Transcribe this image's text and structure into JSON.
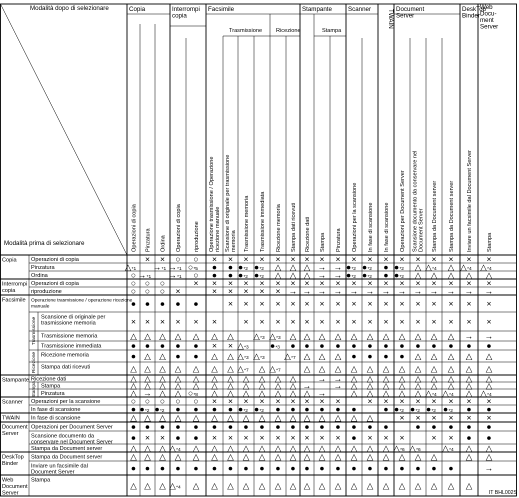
{
  "header": {
    "diagonal_top": "Modalità dopo di selezionare",
    "diagonal_bottom": "Modalità prima di selezionare",
    "groups": [
      {
        "label": "Copia"
      },
      {
        "label": "Interrompi copia"
      },
      {
        "label": "Facsimile"
      },
      {
        "label": "Stampante"
      },
      {
        "label": "Scanner"
      },
      {
        "label": "TWAIN"
      },
      {
        "label": "Document Server"
      },
      {
        "label": "DeskTop Binder"
      },
      {
        "label": "Web Document Server"
      }
    ],
    "subgroups": [
      {
        "label": "Trasmissione"
      },
      {
        "label": "Ricezione"
      },
      {
        "label": "Stampa"
      }
    ],
    "columns": [
      "Operazioni di copia",
      "Pinzatura",
      "Ordina",
      "Operazioni di copia",
      "riproduzione",
      "Operazione trasmissione / Operazione ricezione manuale",
      "Scansione di originale per trasmissione memoria",
      "Trasmissione memoria",
      "Trasmissione immediata",
      "Ricezione memoria",
      "Stampa dati ricevuti",
      "Ricezione dati",
      "Stampa",
      "Pinzatura",
      "Operazioni per la scansione",
      "In fase di scansione",
      "In fase di scansione",
      "Operazioni per Document Server",
      "Scansione documento da conservare nel Document Server",
      "Stampa da Document server",
      "Stampa da Document server",
      "Inviare un facsimile dal Document Server",
      "Stampa"
    ]
  },
  "rows": [
    {
      "group": "Copia",
      "sub": "",
      "label": "Operazioni di copia",
      "cells": [
        "",
        "×",
        "×",
        "○",
        "○",
        "×",
        "×",
        "×",
        "×",
        "×",
        "×",
        "×",
        "×",
        "×",
        "×",
        "×",
        "×",
        "×",
        "×",
        "×",
        "×",
        "×",
        "×"
      ]
    },
    {
      "group": "",
      "sub": "",
      "label": "Pinzatura",
      "cells": [
        "△*1",
        "",
        "→*1",
        "→*1",
        "○*5",
        "●",
        "●",
        "●*2",
        "●*2",
        "△",
        "△",
        "△",
        "→",
        "→",
        "●*2",
        "●*2",
        "●",
        "●*2",
        "△",
        "△*4",
        "△",
        "△*4",
        "△*4"
      ]
    },
    {
      "group": "",
      "sub": "",
      "label": "Ordina",
      "cells": [
        "○",
        "→*1",
        "",
        "→*1",
        "○",
        "●",
        "●",
        "●*2",
        "●*2",
        "△",
        "△",
        "△",
        "→",
        "→",
        "●*2",
        "●*2",
        "●",
        "●*2",
        "△",
        "△",
        "△",
        "△",
        "△"
      ]
    },
    {
      "group": "Interrompi copia",
      "sub": "",
      "label": "Operazioni di copia",
      "cells": [
        "○",
        "○",
        "○",
        "",
        "×",
        "×",
        "×",
        "×",
        "×",
        "×",
        "×",
        "×",
        "×",
        "×",
        "×",
        "×",
        "×",
        "×",
        "×",
        "×",
        "×",
        "×",
        "×"
      ]
    },
    {
      "group": "",
      "sub": "",
      "label": "riproduzione",
      "cells": [
        "○",
        "○",
        "○",
        "×",
        "",
        "×",
        "×",
        "×",
        "×",
        "×",
        "→",
        "→",
        "→",
        "→",
        "→",
        "→",
        "→",
        "→",
        "→",
        "→",
        "→",
        "→",
        "→"
      ]
    },
    {
      "group": "Facsimile",
      "sub": "",
      "label": "Operazione trasmissione / operazione ricezione manuale",
      "cells": [
        "●",
        "●",
        "●",
        "●",
        "●",
        "",
        "×",
        "×",
        "×",
        "×",
        "×",
        "×",
        "×",
        "×",
        "×",
        "×",
        "×",
        "×",
        "×",
        "×",
        "×",
        "×",
        "×"
      ]
    },
    {
      "group": "",
      "sub": "Trasmissione",
      "label": "Scansione di originale per trasmissione memoria",
      "cells": [
        "×",
        "×",
        "×",
        "×",
        "×",
        "×",
        "",
        "×",
        "×",
        "×",
        "×",
        "×",
        "×",
        "×",
        "×",
        "×",
        "×",
        "×",
        "×",
        "×",
        "×",
        "×",
        "×"
      ]
    },
    {
      "group": "",
      "sub": "",
      "label": "Trasmissione memoria",
      "cells": [
        "△",
        "△",
        "△",
        "△",
        "△",
        "△",
        "△",
        "",
        "△*3",
        "△*3",
        "△",
        "△",
        "△",
        "△",
        "△",
        "△",
        "△",
        "△",
        "△",
        "△",
        "△",
        "→",
        "→"
      ]
    },
    {
      "group": "",
      "sub": "",
      "label": "Trasmissione immediata",
      "cells": [
        "●",
        "●",
        "●",
        "●",
        "●",
        "×",
        "×",
        "△*3",
        "",
        "●*3",
        "●",
        "●",
        "●",
        "●",
        "●",
        "●",
        "●",
        "●",
        "●",
        "●",
        "●",
        "●",
        "●"
      ]
    },
    {
      "group": "",
      "sub": "Ricezione",
      "label": "Ricezione memoria",
      "cells": [
        "●",
        "△",
        "△",
        "●",
        "●",
        "△",
        "△",
        "△*3",
        "△*3",
        "",
        "△*7",
        "△",
        "△",
        "△",
        "●",
        "●",
        "●",
        "●",
        "△",
        "△",
        "△",
        "△",
        "△"
      ]
    },
    {
      "group": "",
      "sub": "",
      "label": "Stampa dati ricevuti",
      "cells": [
        "△",
        "△",
        "△",
        "△",
        "△",
        "△",
        "△",
        "△*7",
        "△",
        "△*7",
        "",
        "△",
        "△",
        "△",
        "△",
        "△",
        "△",
        "△",
        "△",
        "△",
        "△",
        "△",
        "△"
      ]
    },
    {
      "group": "Stampante",
      "sub": "",
      "label": "Ricezione dati",
      "cells": [
        "△",
        "△",
        "△",
        "△",
        "△",
        "△",
        "△",
        "△",
        "△",
        "△",
        "△",
        "",
        "→",
        "→",
        "△",
        "△",
        "△",
        "△",
        "△",
        "△",
        "△",
        "△",
        "△"
      ]
    },
    {
      "group": "",
      "sub": "Stampa",
      "label": "Stampa",
      "cells": [
        "△",
        "△",
        "△",
        "△",
        "△",
        "△",
        "△",
        "△",
        "△",
        "△",
        "△",
        "→",
        "",
        "→",
        "△",
        "△",
        "△",
        "△",
        "△",
        "△",
        "△",
        "△",
        "△"
      ]
    },
    {
      "group": "",
      "sub": "",
      "label": "Pinzatura",
      "cells": [
        "△",
        "→",
        "△",
        "△",
        "○*8",
        "△",
        "△",
        "△",
        "△",
        "△",
        "△",
        "△",
        "→",
        "",
        "△",
        "△",
        "△",
        "△",
        "△",
        "△*4",
        "△*4",
        "△",
        "△*4"
      ]
    },
    {
      "group": "Scanner",
      "sub": "",
      "label": "Operazioni per la scansione",
      "cells": [
        "○",
        "○",
        "○",
        "○",
        "○",
        "×",
        "×",
        "×",
        "×",
        "×",
        "×",
        "×",
        "×",
        "×",
        "",
        "×",
        "×",
        "×",
        "×",
        "×",
        "×",
        "×",
        "×"
      ]
    },
    {
      "group": "",
      "sub": "",
      "label": "In fase di scansione",
      "cells": [
        "●",
        "●*2",
        "●*2",
        "●",
        "●",
        "●",
        "●",
        "●*2",
        "●*2",
        "●",
        "●",
        "●",
        "●",
        "●",
        "●",
        "",
        "●",
        "●*2",
        "●*2",
        "●*2",
        "●*2",
        "●",
        "●"
      ]
    },
    {
      "group": "TWAIN",
      "sub": "",
      "label": "In fase di scansione",
      "cells": [
        "△",
        "△",
        "△",
        "△",
        "△",
        "△",
        "△",
        "△",
        "△",
        "△",
        "△",
        "△",
        "△",
        "△",
        "△",
        "△",
        "",
        "×",
        "×",
        "×",
        "×",
        "×",
        "×"
      ]
    },
    {
      "group": "Document Server",
      "sub": "",
      "label": "Operazioni per Document Server",
      "cells": [
        "●",
        "●",
        "●",
        "●",
        "●",
        "●",
        "●",
        "●",
        "●",
        "●",
        "●",
        "●",
        "●",
        "●",
        "●",
        "●",
        "●",
        "",
        "●",
        "●",
        "●",
        "●",
        "●"
      ]
    },
    {
      "group": "",
      "sub": "",
      "label": "Scansione documento da conservare nel Document Server",
      "cells": [
        "●",
        "×",
        "×",
        "●",
        "●",
        "×",
        "×",
        "×",
        "×",
        "×",
        "×",
        "×",
        "×",
        "×",
        "●",
        "×",
        "×",
        "×",
        "",
        "×",
        "×",
        "●",
        "●"
      ]
    },
    {
      "group": "",
      "sub": "",
      "label": "Stampa da Document server",
      "cells": [
        "△",
        "△",
        "△",
        "△*4",
        "△",
        "△",
        "△",
        "△",
        "△",
        "△",
        "△",
        "△",
        "△",
        "△",
        "△",
        "△",
        "△",
        "△*6",
        "△*6",
        "",
        "△*4",
        "△",
        "△"
      ]
    },
    {
      "group": "DeskTop Binder",
      "sub": "",
      "label": "Stampa da Document server",
      "cells": [
        "△",
        "△",
        "△",
        "△",
        "△",
        "△",
        "△",
        "△",
        "△",
        "△",
        "△",
        "△",
        "△",
        "△",
        "△",
        "△",
        "△",
        "△",
        "△",
        "△",
        "",
        "△",
        "△"
      ]
    },
    {
      "group": "",
      "sub": "",
      "label": "Inviare un facsimile dal Document Server",
      "cells": [
        "●",
        "●",
        "●",
        "●",
        "●",
        "●",
        "●",
        "●",
        "●",
        "●",
        "●",
        "●",
        "●",
        "●",
        "●",
        "●",
        "●",
        "●",
        "●",
        "●",
        "●",
        "",
        "→"
      ]
    },
    {
      "group": "Web Document Server",
      "sub": "",
      "label": "Stampa",
      "cells": [
        "△",
        "△",
        "△",
        "△*4",
        "△",
        "△",
        "△",
        "△",
        "△",
        "△",
        "△",
        "△",
        "△",
        "△",
        "△",
        "△",
        "△",
        "△",
        "△",
        "△",
        "△",
        "△",
        ""
      ]
    }
  ],
  "footer_code": "IT BHL002S"
}
